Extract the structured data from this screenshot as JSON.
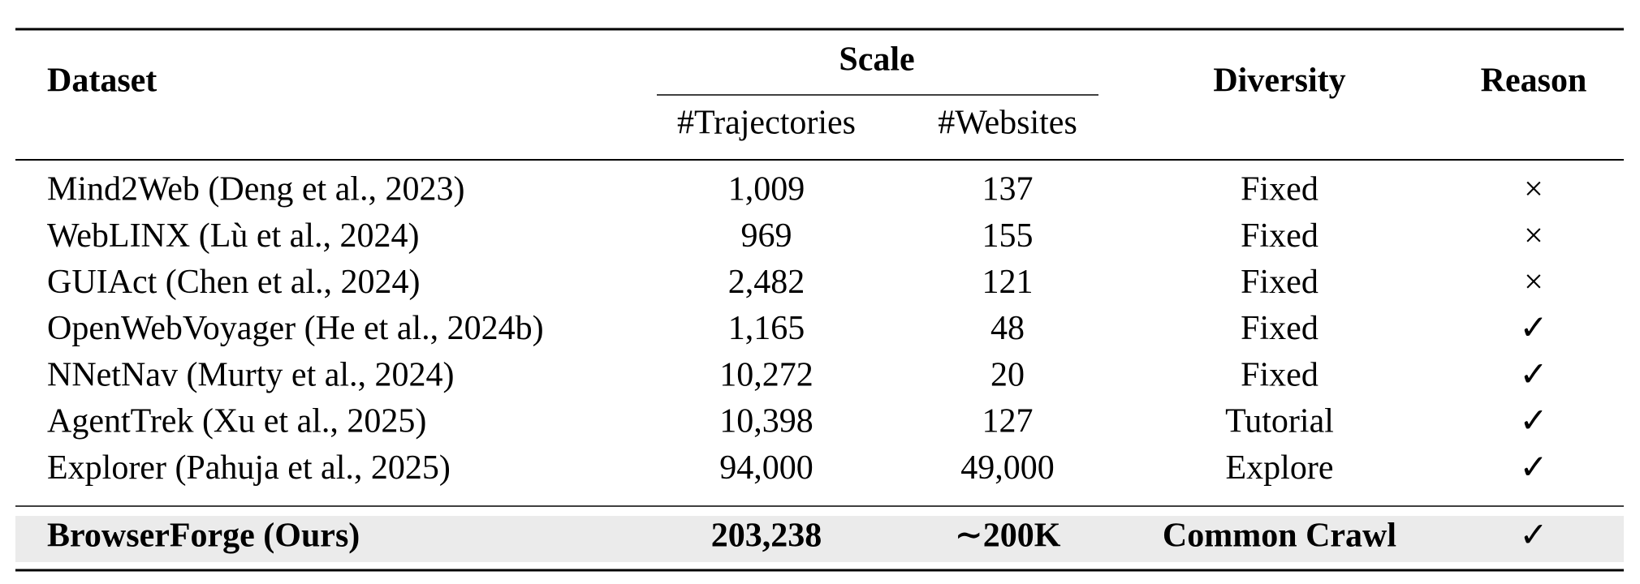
{
  "table": {
    "header": {
      "dataset": "Dataset",
      "scale": "Scale",
      "trajectories": "#Trajectories",
      "websites": "#Websites",
      "diversity": "Diversity",
      "reason": "Reason"
    },
    "rows": [
      [
        "Mind2Web (Deng et al., 2023)",
        "1,009",
        "137",
        "Fixed",
        "×"
      ],
      [
        "WebLINX (Lù et al., 2024)",
        "969",
        "155",
        "Fixed",
        "×"
      ],
      [
        "GUIAct (Chen et al., 2024)",
        "2,482",
        "121",
        "Fixed",
        "×"
      ],
      [
        "OpenWebVoyager (He et al., 2024b)",
        "1,165",
        "48",
        "Fixed",
        "✓"
      ],
      [
        "NNetNav (Murty et al., 2024)",
        "10,272",
        "20",
        "Fixed",
        "✓"
      ],
      [
        "AgentTrek (Xu et al., 2025)",
        "10,398",
        "127",
        "Tutorial",
        "✓"
      ],
      [
        "Explorer (Pahuja et al., 2025)",
        "94,000",
        "49,000",
        "Explore",
        "✓"
      ]
    ],
    "highlight_row": [
      "BrowserForge (Ours)",
      "203,238",
      "∼200K",
      "Common Crawl",
      "✓"
    ]
  }
}
